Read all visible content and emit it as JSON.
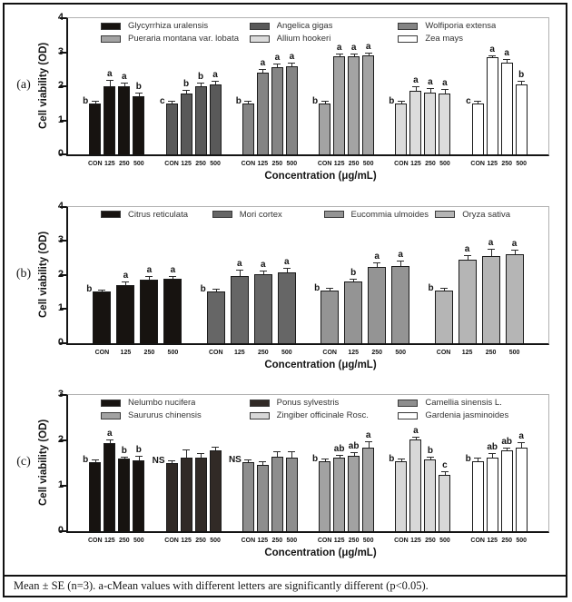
{
  "caption": {
    "text": "Mean ± SE (n=3). a-cMean values with different letters are significantly different (p<0.05)."
  },
  "chart_data": [
    {
      "type": "bar",
      "panel": "(a)",
      "ylabel": "Cell viability (OD)",
      "xlabel": "Concentration (μg/mL)",
      "ylim": [
        0,
        4
      ],
      "yticks": [
        0,
        1,
        2,
        3,
        4
      ],
      "grid": false,
      "legend_position": "top-inside",
      "legend_columns": 3,
      "categories": [
        "CON",
        "125",
        "250",
        "500"
      ],
      "series": [
        {
          "name": "Glycyrrhiza uralensis",
          "color": "#171310",
          "values": [
            1.5,
            2.0,
            2.0,
            1.72
          ],
          "errors": [
            0.04,
            0.15,
            0.08,
            0.06
          ],
          "letters": [
            "b",
            "a",
            "a",
            "b"
          ]
        },
        {
          "name": "Angelica gigas",
          "color": "#595959",
          "values": [
            1.5,
            1.8,
            2.0,
            2.06
          ],
          "errors": [
            0.04,
            0.06,
            0.07,
            0.08
          ],
          "letters": [
            "c",
            "b",
            "b",
            "a"
          ]
        },
        {
          "name": "Wolfiporia extensa",
          "color": "#848484",
          "values": [
            1.5,
            2.4,
            2.56,
            2.6
          ],
          "errors": [
            0.04,
            0.08,
            0.09,
            0.08
          ],
          "letters": [
            "b",
            "a",
            "a",
            "a"
          ]
        },
        {
          "name": "Pueraria montana var. lobata",
          "color": "#a3a3a3",
          "values": [
            1.5,
            2.88,
            2.89,
            2.92
          ],
          "errors": [
            0.04,
            0.06,
            0.05,
            0.04
          ],
          "letters": [
            "b",
            "a",
            "a",
            "a"
          ]
        },
        {
          "name": "Allium hookeri",
          "color": "#dcdcdc",
          "values": [
            1.5,
            1.88,
            1.82,
            1.8
          ],
          "errors": [
            0.04,
            0.09,
            0.09,
            0.09
          ],
          "letters": [
            "b",
            "a",
            "a",
            "a"
          ]
        },
        {
          "name": "Zea mays",
          "color": "#ffffff",
          "values": [
            1.5,
            2.85,
            2.7,
            2.06
          ],
          "errors": [
            0.04,
            0.04,
            0.07,
            0.07
          ],
          "letters": [
            "c",
            "a",
            "a",
            "b"
          ]
        }
      ]
    },
    {
      "type": "bar",
      "panel": "(b)",
      "ylabel": "Cell viability (OD)",
      "xlabel": "Concentration (μg/mL)",
      "ylim": [
        0,
        4
      ],
      "yticks": [
        0,
        1,
        2,
        3,
        4
      ],
      "grid": false,
      "legend_position": "top-inside",
      "legend_columns": 4,
      "categories": [
        "CON",
        "125",
        "250",
        "500"
      ],
      "series": [
        {
          "name": "Citrus reticulata",
          "color": "#171310",
          "values": [
            1.52,
            1.7,
            1.85,
            1.88
          ],
          "errors": [
            0.03,
            0.08,
            0.09,
            0.05
          ],
          "letters": [
            "b",
            "a",
            "a",
            "a"
          ]
        },
        {
          "name": "Mori cortex",
          "color": "#666666",
          "values": [
            1.52,
            1.97,
            2.02,
            2.08
          ],
          "errors": [
            0.04,
            0.15,
            0.07,
            0.1
          ],
          "letters": [
            "b",
            "a",
            "a",
            "a"
          ]
        },
        {
          "name": "Eucommia ulmoides",
          "color": "#949494",
          "values": [
            1.55,
            1.8,
            2.24,
            2.25
          ],
          "errors": [
            0.04,
            0.06,
            0.1,
            0.13
          ],
          "letters": [
            "b",
            "b",
            "a",
            "a"
          ]
        },
        {
          "name": "Oryza sativa",
          "color": "#b5b5b5",
          "values": [
            1.55,
            2.45,
            2.55,
            2.6
          ],
          "errors": [
            0.03,
            0.1,
            0.18,
            0.12
          ],
          "letters": [
            "b",
            "a",
            "a",
            "a"
          ]
        }
      ]
    },
    {
      "type": "bar",
      "panel": "(c)",
      "ylabel": "Cell viability (OD)",
      "xlabel": "Concentration (μg/mL)",
      "ylim": [
        0,
        3
      ],
      "yticks": [
        0,
        1,
        2,
        3
      ],
      "grid": false,
      "legend_position": "top-inside",
      "legend_columns": 3,
      "categories": [
        "CON",
        "125",
        "250",
        "500"
      ],
      "series": [
        {
          "name": "Nelumbo nucifera",
          "color": "#171310",
          "values": [
            1.52,
            1.95,
            1.6,
            1.57
          ],
          "errors": [
            0.05,
            0.06,
            0.03,
            0.08
          ],
          "letters": [
            "b",
            "a",
            "b",
            "b"
          ]
        },
        {
          "name": "Ponus sylvestris",
          "color": "#312a26",
          "values": [
            1.5,
            1.62,
            1.63,
            1.78
          ],
          "errors": [
            0.04,
            0.17,
            0.07,
            0.06
          ],
          "letters": [
            "NS",
            "",
            "",
            ""
          ]
        },
        {
          "name": "Camellia sinensis L.",
          "color": "#8e8e8e",
          "values": [
            1.52,
            1.47,
            1.65,
            1.63
          ],
          "errors": [
            0.04,
            0.06,
            0.1,
            0.12
          ],
          "letters": [
            "NS",
            "",
            "",
            ""
          ]
        },
        {
          "name": "Saururus chinensis",
          "color": "#a2a2a2",
          "values": [
            1.55,
            1.63,
            1.67,
            1.85
          ],
          "errors": [
            0.04,
            0.04,
            0.05,
            0.11
          ],
          "letters": [
            "b",
            "ab",
            "ab",
            "a"
          ]
        },
        {
          "name": "Zingiber officinale Rosc.",
          "color": "#d8d8d8",
          "values": [
            1.55,
            2.02,
            1.58,
            1.25
          ],
          "errors": [
            0.04,
            0.04,
            0.04,
            0.05
          ],
          "letters": [
            "b",
            "a",
            "b",
            "c"
          ]
        },
        {
          "name": "Gardenia jasminoides",
          "color": "#ffffff",
          "values": [
            1.55,
            1.62,
            1.78,
            1.85
          ],
          "errors": [
            0.05,
            0.09,
            0.05,
            0.09
          ],
          "letters": [
            "b",
            "ab",
            "ab",
            "a"
          ]
        }
      ]
    }
  ]
}
